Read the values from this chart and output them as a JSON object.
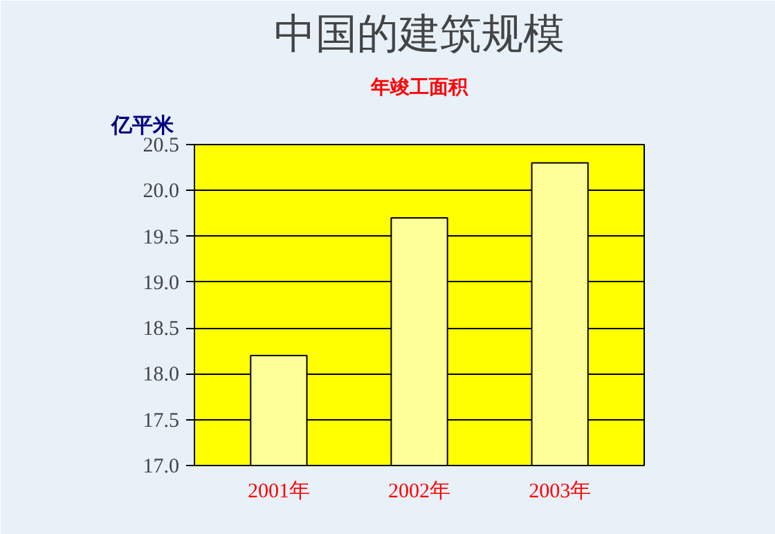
{
  "chart_data": {
    "type": "bar",
    "title": "中国的建筑规模",
    "subtitle": "年竣工面积",
    "ylabel": "亿平米",
    "categories": [
      "2001年",
      "2002年",
      "2003年"
    ],
    "values": [
      18.2,
      19.7,
      20.3
    ],
    "color": "#ffff99",
    "ylim": [
      17.0,
      20.5
    ],
    "yticks": [
      {
        "value": 17.0,
        "label": "17.0"
      },
      {
        "value": 17.5,
        "label": "17.5"
      },
      {
        "value": 18.0,
        "label": "18.0"
      },
      {
        "value": 18.5,
        "label": "18.5"
      },
      {
        "value": 19.0,
        "label": "19.0"
      },
      {
        "value": 19.5,
        "label": "19.5"
      },
      {
        "value": 20.0,
        "label": "20.0"
      },
      {
        "value": 20.5,
        "label": "20.5"
      }
    ],
    "grid": "y"
  }
}
